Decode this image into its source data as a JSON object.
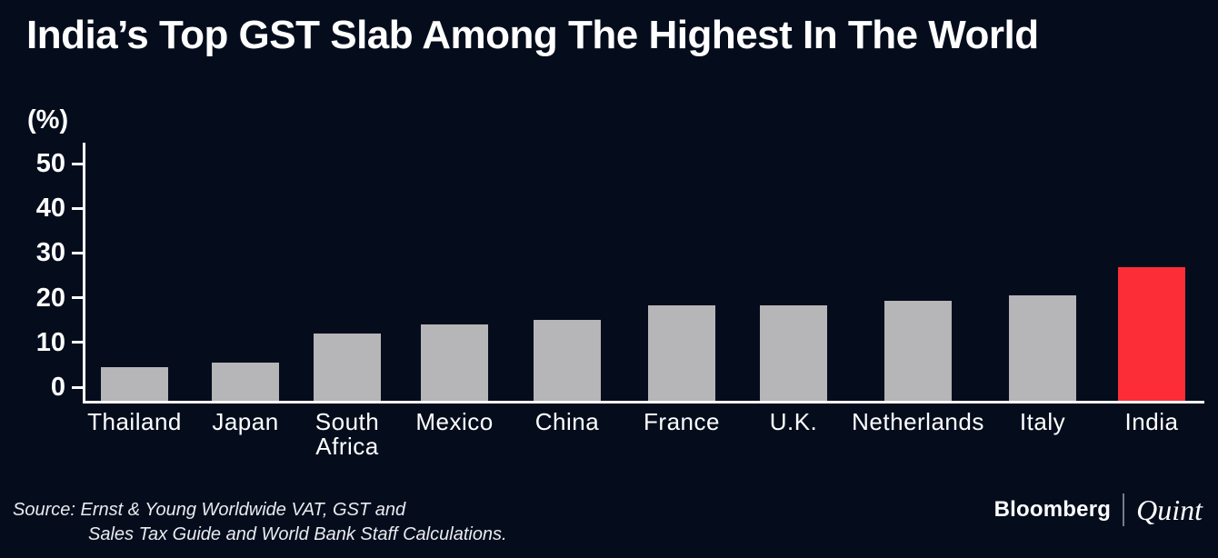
{
  "title": "India’s Top GST Slab Among The Highest In The World",
  "chart_data": {
    "type": "bar",
    "title": "India’s Top GST Slab Among The Highest In The World",
    "unit_label": "(%)",
    "xlabel": "",
    "ylabel": "(%)",
    "categories": [
      "Thailand",
      "Japan",
      "South Africa",
      "Mexico",
      "China",
      "France",
      "U.K.",
      "Netherlands",
      "Italy",
      "India"
    ],
    "label_lines": [
      [
        "Thailand"
      ],
      [
        "Japan"
      ],
      [
        "South",
        "Africa"
      ],
      [
        "Mexico"
      ],
      [
        "China"
      ],
      [
        "France"
      ],
      [
        "U.K."
      ],
      [
        "Netherlands"
      ],
      [
        "Italy"
      ],
      [
        "India"
      ]
    ],
    "values": [
      7,
      8,
      14,
      16,
      17,
      20,
      20,
      21,
      22,
      28
    ],
    "highlight_category": "India",
    "bar_color": "#b6b5b7",
    "highlight_color": "#fd2d38",
    "axis_color": "#ffffff",
    "ylim": [
      0,
      50
    ],
    "yticks": [
      0,
      10,
      20,
      30,
      40,
      50
    ],
    "grid": false,
    "legend": "none"
  },
  "source": {
    "line1": "Source: Ernst & Young Worldwide VAT, GST and",
    "line2": "Sales Tax Guide and World Bank Staff Calculations."
  },
  "branding": {
    "bloomberg": "Bloomberg",
    "quint": "Quint"
  },
  "colors": {
    "background": "#050d1d",
    "title_text": "#ffffff",
    "source_text": "#e8ebef",
    "logo_separator": "#757c88"
  }
}
